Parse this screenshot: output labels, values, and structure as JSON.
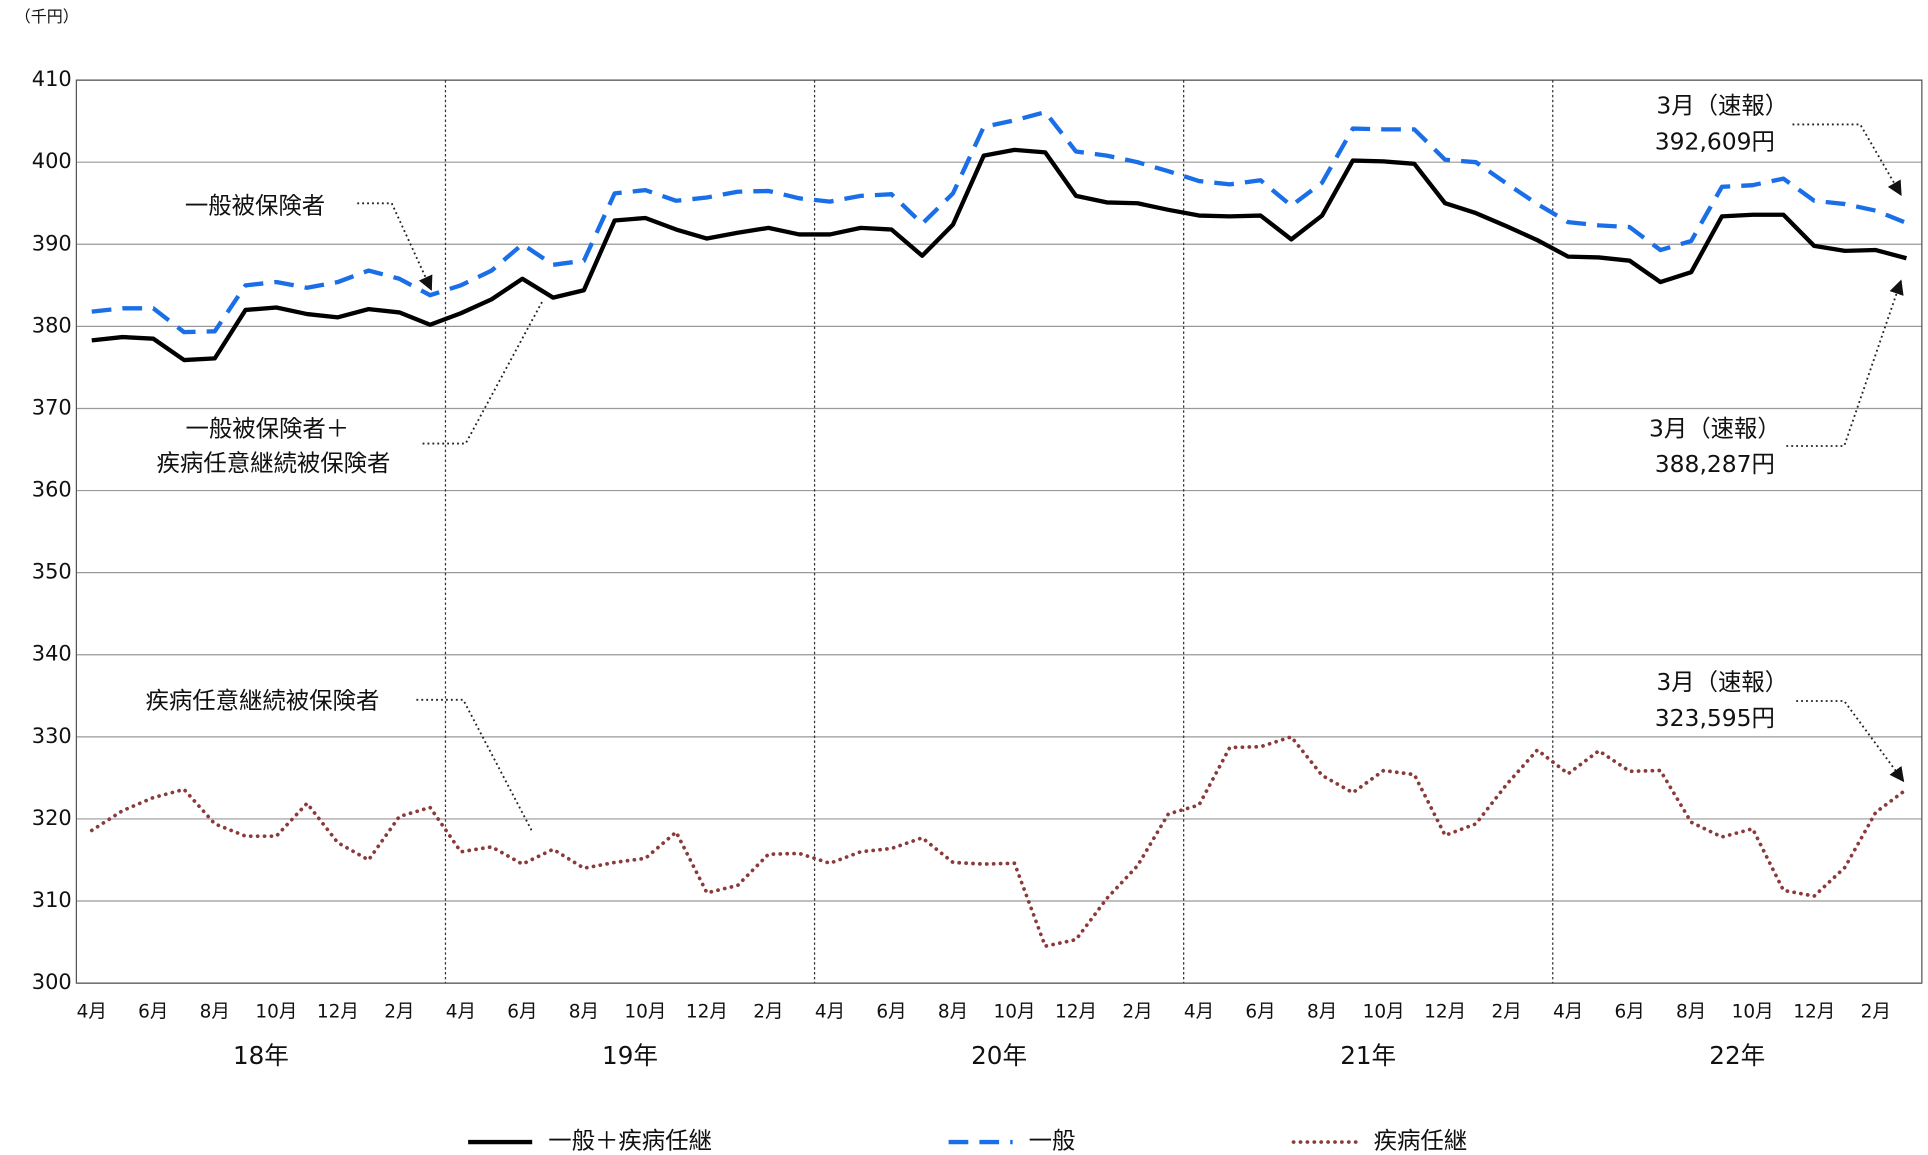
{
  "chart_data": {
    "type": "line",
    "unit_label": "（千円）",
    "categories": [
      "4月",
      null,
      "6月",
      null,
      "8月",
      null,
      "10月",
      null,
      "12月",
      null,
      "2月",
      null,
      "4月",
      null,
      "6月",
      null,
      "8月",
      null,
      "10月",
      null,
      "12月",
      null,
      "2月",
      null,
      "4月",
      null,
      "6月",
      null,
      "8月",
      null,
      "10月",
      null,
      "12月",
      null,
      "2月",
      null,
      "4月",
      null,
      "6月",
      null,
      "8月",
      null,
      "10月",
      null,
      "12月",
      null,
      "2月",
      null,
      "4月",
      null,
      "6月",
      null,
      "8月",
      null,
      "10月",
      null,
      "12月",
      null,
      "2月",
      null
    ],
    "years": [
      "18年",
      "19年",
      "20年",
      "21年",
      "22年"
    ],
    "ylim": [
      300,
      410
    ],
    "yticks": [
      300,
      310,
      320,
      330,
      340,
      350,
      360,
      370,
      380,
      390,
      400,
      410
    ],
    "grid": true,
    "series": [
      {
        "name": "一般＋疾病任継",
        "color": "#000000",
        "style": "solid",
        "values": [
          378.3,
          378.7,
          378.5,
          375.9,
          376.1,
          382.0,
          382.3,
          381.5,
          381.1,
          382.1,
          381.7,
          380.2,
          381.6,
          383.3,
          385.8,
          383.5,
          384.4,
          392.9,
          393.2,
          391.8,
          390.7,
          391.4,
          392.0,
          391.2,
          391.2,
          392.0,
          391.8,
          388.6,
          392.4,
          400.8,
          401.5,
          401.2,
          395.9,
          395.1,
          395.0,
          394.2,
          393.5,
          393.4,
          393.5,
          390.6,
          393.5,
          400.2,
          400.1,
          399.8,
          395.0,
          393.8,
          392.2,
          390.5,
          388.5,
          388.4,
          388.0,
          385.4,
          386.6,
          393.4,
          393.6,
          393.6,
          389.8,
          389.2,
          389.3,
          388.3
        ]
      },
      {
        "name": "一般",
        "color": "#1a6fe8",
        "style": "dashed",
        "values": [
          381.8,
          382.2,
          382.2,
          379.3,
          379.4,
          385.0,
          385.4,
          384.7,
          385.4,
          386.8,
          385.8,
          383.8,
          385.0,
          386.8,
          390.0,
          387.5,
          388.0,
          396.2,
          396.6,
          395.3,
          395.7,
          396.4,
          396.5,
          395.6,
          395.2,
          395.9,
          396.1,
          392.5,
          396.2,
          404.3,
          405.1,
          406.1,
          401.3,
          400.8,
          400.0,
          398.9,
          397.7,
          397.3,
          397.8,
          394.7,
          397.5,
          404.1,
          404.0,
          404.0,
          400.3,
          400.0,
          397.4,
          394.9,
          392.7,
          392.3,
          392.1,
          389.3,
          390.4,
          397.0,
          397.2,
          398.0,
          395.3,
          394.9,
          394.1,
          392.6
        ]
      },
      {
        "name": "疾病任継",
        "color": "#8b3a3a",
        "style": "dotted",
        "values": [
          318.6,
          321.0,
          322.6,
          323.6,
          319.4,
          317.9,
          317.9,
          321.9,
          317.1,
          315.0,
          320.3,
          321.4,
          316.0,
          316.6,
          314.5,
          316.3,
          314.0,
          314.7,
          315.2,
          318.4,
          311.0,
          311.9,
          315.7,
          315.8,
          314.6,
          316.0,
          316.4,
          317.7,
          314.7,
          314.5,
          314.6,
          304.5,
          305.3,
          310.3,
          314.3,
          320.6,
          321.7,
          328.7,
          328.8,
          330.0,
          325.3,
          323.2,
          325.9,
          325.4,
          318.0,
          319.4,
          324.2,
          328.4,
          325.5,
          328.3,
          325.8,
          325.9,
          319.6,
          317.8,
          318.8,
          311.3,
          310.6,
          314.1,
          320.8,
          323.6
        ]
      }
    ],
    "annotations": [
      "一般被保険者",
      "一般被保険者＋",
      "疾病任意継続被保険者",
      "疾病任意継続被保険者",
      "3月（速報）",
      "392,609円",
      "3月（速報）",
      "388,287円",
      "3月（速報）",
      "323,595円"
    ]
  }
}
